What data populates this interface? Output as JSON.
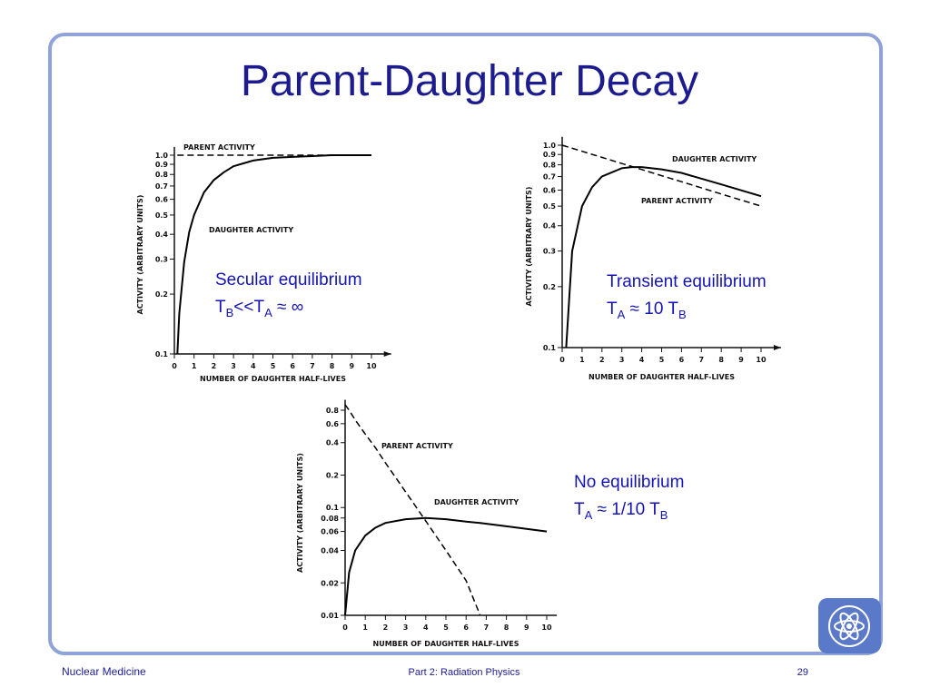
{
  "title": "Parent-Daughter Decay",
  "footer": {
    "left": "Nuclear Medicine",
    "center": "Part 2: Radiation Physics",
    "page": "29"
  },
  "chart_data": [
    {
      "type": "line",
      "log_y": true,
      "xlabel": "NUMBER OF DAUGHTER HALF-LIVES",
      "ylabel": "ACTIVITY (ARBITRARY UNITS)",
      "annotation": [
        "Secular equilibrium",
        [
          "T",
          "B",
          "<<T",
          "A",
          " ≈ ∞"
        ]
      ],
      "x": [
        0.15,
        0.25,
        0.5,
        0.75,
        1,
        1.5,
        2,
        2.5,
        3,
        4,
        5,
        6,
        7,
        8,
        9,
        10
      ],
      "xlim": [
        0,
        11
      ],
      "xticks": [
        0,
        1,
        2,
        3,
        4,
        5,
        6,
        7,
        8,
        9,
        10
      ],
      "ylim": [
        0.1,
        1.1
      ],
      "yticks": [
        0.1,
        0.2,
        0.3,
        0.4,
        0.5,
        0.6,
        0.7,
        0.8,
        0.9,
        {
          "value": 1,
          "label": "1.0"
        }
      ],
      "series": [
        {
          "name": "PARENT ACTIVITY",
          "color": "#000000",
          "dashed": true,
          "values": [
            1,
            1,
            1,
            1,
            1,
            1,
            1,
            1,
            1,
            1,
            1,
            1,
            1,
            1,
            1,
            1
          ]
        },
        {
          "name": "DAUGHTER ACTIVITY",
          "color": "#000000",
          "dashed": false,
          "values": [
            0.1,
            0.16,
            0.29,
            0.41,
            0.5,
            0.65,
            0.75,
            0.82,
            0.88,
            0.94,
            0.97,
            0.98,
            0.99,
            1,
            1,
            1
          ]
        }
      ]
    },
    {
      "type": "line",
      "log_y": true,
      "xlabel": "NUMBER OF DAUGHTER HALF-LIVES",
      "ylabel": "ACTIVITY (ARBITRARY UNITS)",
      "annotation": [
        "Transient equilibrium",
        [
          "T",
          "A",
          " ≈ 10 T",
          "B"
        ]
      ],
      "x": [
        0,
        0.2,
        0.5,
        1,
        1.5,
        2,
        3,
        3.5,
        4,
        5,
        6,
        8,
        10
      ],
      "xlim": [
        0,
        11
      ],
      "xticks": [
        0,
        1,
        2,
        3,
        4,
        5,
        6,
        7,
        8,
        9,
        10
      ],
      "ylim": [
        0.1,
        1.1
      ],
      "yticks": [
        0.1,
        0.2,
        0.3,
        0.4,
        0.5,
        0.6,
        0.7,
        0.8,
        0.9,
        {
          "value": 1,
          "label": "1.0"
        }
      ],
      "series": [
        {
          "name": "PARENT ACTIVITY",
          "color": "#000000",
          "dashed": true,
          "values": [
            1,
            0.986,
            0.966,
            0.933,
            0.901,
            0.871,
            0.812,
            0.785,
            0.758,
            0.707,
            0.66,
            0.574,
            0.5
          ]
        },
        {
          "name": "DAUGHTER ACTIVITY",
          "color": "#000000",
          "dashed": false,
          "values": [
            null,
            0.1,
            0.3,
            0.5,
            0.62,
            0.7,
            0.77,
            0.78,
            0.78,
            0.76,
            0.73,
            0.64,
            0.56
          ]
        }
      ]
    },
    {
      "type": "line",
      "log_y": true,
      "xlabel": "NUMBER OF DAUGHTER HALF-LIVES",
      "ylabel": "ACTIVITY (ARBITRARY UNITS)",
      "annotation": [
        "No equilibrium",
        [
          "T",
          "A",
          " ≈ 1/10 T",
          "B"
        ]
      ],
      "x": [
        0,
        0.2,
        0.5,
        1,
        1.5,
        2,
        3,
        4,
        5,
        6,
        6.7,
        8,
        10
      ],
      "xlim": [
        0,
        10.5
      ],
      "xticks": [
        0,
        1,
        2,
        3,
        4,
        5,
        6,
        7,
        8,
        9,
        10
      ],
      "ylim": [
        0.01,
        1
      ],
      "yticks": [
        0.01,
        0.02,
        0.04,
        0.06,
        0.08,
        0.1,
        0.2,
        0.4,
        0.6,
        0.8
      ],
      "series": [
        {
          "name": "PARENT ACTIVITY",
          "color": "#000000",
          "dashed": true,
          "values": [
            0.9,
            0.8,
            0.65,
            0.48,
            0.36,
            0.26,
            0.14,
            0.075,
            0.04,
            0.021,
            0.01,
            null,
            null
          ]
        },
        {
          "name": "DAUGHTER ACTIVITY",
          "color": "#000000",
          "dashed": false,
          "values": [
            0.01,
            0.025,
            0.04,
            0.055,
            0.065,
            0.072,
            0.078,
            0.08,
            0.078,
            0.074,
            0.072,
            0.067,
            0.06
          ]
        }
      ]
    }
  ]
}
